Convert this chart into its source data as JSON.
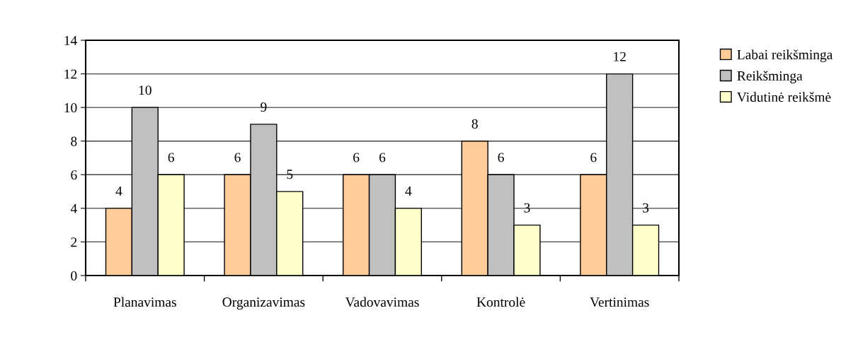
{
  "chart_data": {
    "type": "bar",
    "categories": [
      "Planavimas",
      "Organizavimas",
      "Vadovavimas",
      "Kontrolė",
      "Vertinimas"
    ],
    "series": [
      {
        "name": "Labai reikšminga",
        "color": "#ffcc99",
        "values": [
          4,
          6,
          6,
          8,
          6
        ]
      },
      {
        "name": "Reikšminga",
        "color": "#c0c0c0",
        "values": [
          10,
          9,
          6,
          6,
          12
        ]
      },
      {
        "name": "Vidutinė reikšmė",
        "color": "#ffffcc",
        "values": [
          6,
          5,
          4,
          3,
          3
        ]
      }
    ],
    "ylim": [
      0,
      14
    ],
    "yticks": [
      0,
      2,
      4,
      6,
      8,
      10,
      12,
      14
    ],
    "grid": "y",
    "legend": "right",
    "data_labels": true
  }
}
